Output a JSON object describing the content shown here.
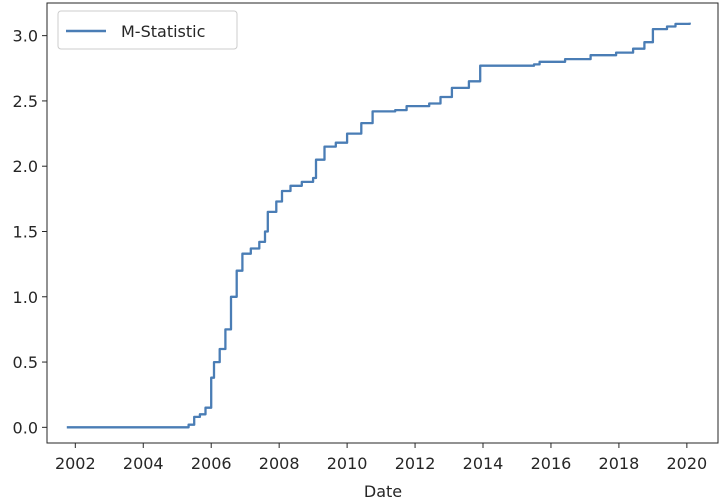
{
  "chart_data": {
    "type": "line",
    "title": "",
    "xlabel": "Date",
    "ylabel": "",
    "x_ticks": [
      "2002",
      "2004",
      "2006",
      "2008",
      "2010",
      "2012",
      "2014",
      "2016",
      "2018",
      "2020"
    ],
    "y_ticks": [
      "0.0",
      "0.5",
      "1.0",
      "1.5",
      "2.0",
      "2.5",
      "3.0"
    ],
    "xlim": [
      "2001-03",
      "2020-12"
    ],
    "ylim": [
      -0.12,
      3.25
    ],
    "grid": false,
    "legend_position": "top-left",
    "series": [
      {
        "name": "M-Statistic",
        "color": "#4a7db5",
        "points": [
          [
            "2001-10",
            0.0
          ],
          [
            "2003-01",
            0.0
          ],
          [
            "2004-06",
            0.0
          ],
          [
            "2005-02",
            0.0
          ],
          [
            "2005-05",
            0.02
          ],
          [
            "2005-07",
            0.08
          ],
          [
            "2005-09",
            0.1
          ],
          [
            "2005-11",
            0.15
          ],
          [
            "2006-01",
            0.38
          ],
          [
            "2006-02",
            0.5
          ],
          [
            "2006-04",
            0.6
          ],
          [
            "2006-06",
            0.75
          ],
          [
            "2006-08",
            1.0
          ],
          [
            "2006-10",
            1.2
          ],
          [
            "2006-12",
            1.33
          ],
          [
            "2007-03",
            1.37
          ],
          [
            "2007-06",
            1.42
          ],
          [
            "2007-08",
            1.5
          ],
          [
            "2007-09",
            1.65
          ],
          [
            "2007-12",
            1.73
          ],
          [
            "2008-02",
            1.81
          ],
          [
            "2008-05",
            1.85
          ],
          [
            "2008-09",
            1.88
          ],
          [
            "2009-01",
            1.91
          ],
          [
            "2009-02",
            2.05
          ],
          [
            "2009-05",
            2.15
          ],
          [
            "2009-09",
            2.18
          ],
          [
            "2010-01",
            2.25
          ],
          [
            "2010-06",
            2.33
          ],
          [
            "2010-10",
            2.42
          ],
          [
            "2011-06",
            2.43
          ],
          [
            "2011-10",
            2.46
          ],
          [
            "2012-06",
            2.48
          ],
          [
            "2012-10",
            2.53
          ],
          [
            "2013-02",
            2.6
          ],
          [
            "2013-08",
            2.65
          ],
          [
            "2013-12",
            2.77
          ],
          [
            "2014-06",
            2.77
          ],
          [
            "2015-07",
            2.78
          ],
          [
            "2015-09",
            2.8
          ],
          [
            "2016-06",
            2.82
          ],
          [
            "2017-03",
            2.85
          ],
          [
            "2017-12",
            2.87
          ],
          [
            "2018-06",
            2.9
          ],
          [
            "2018-10",
            2.95
          ],
          [
            "2019-01",
            3.05
          ],
          [
            "2019-06",
            3.07
          ],
          [
            "2019-09",
            3.09
          ],
          [
            "2020-02",
            3.1
          ]
        ]
      }
    ]
  }
}
